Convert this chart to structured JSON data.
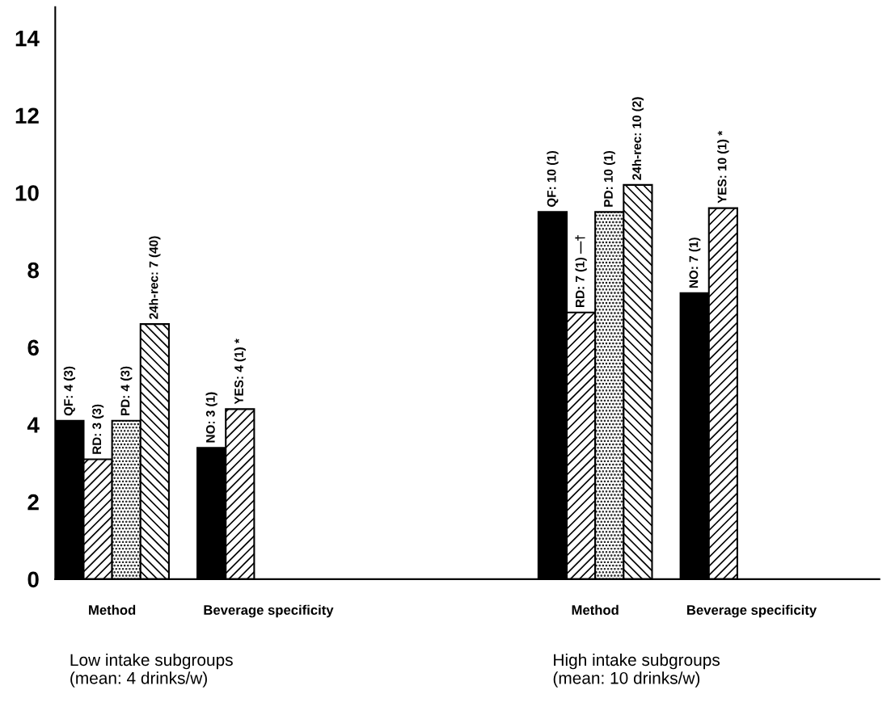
{
  "chart_data": {
    "type": "bar",
    "categories": [
      null,
      null,
      null,
      null,
      null,
      null,
      null,
      null,
      null,
      null,
      null,
      null,
      null,
      null,
      null,
      null,
      null,
      null,
      null,
      null,
      null,
      null,
      null,
      null,
      null,
      null,
      null,
      null,
      null
    ],
    "series": [
      {
        "color": "#000000",
        "values": [
          4.1,
          null,
          null,
          null,
          null,
          3.4,
          null,
          null,
          null,
          null,
          null,
          null,
          null,
          null,
          null,
          null,
          null,
          9.5,
          null,
          null,
          null,
          null,
          7.4,
          null,
          null,
          null,
          null,
          null,
          null
        ],
        "value_labels": [
          "QF: 4 (3)",
          null,
          null,
          null,
          null,
          "NO: 3 (1)",
          null,
          null,
          null,
          null,
          null,
          null,
          null,
          null,
          null,
          null,
          null,
          "QF: 10 (1)",
          null,
          null,
          null,
          null,
          "NO: 7 (1)",
          null,
          null,
          null,
          null,
          null,
          null
        ]
      },
      {
        "color": "#000000",
        "values": [
          null,
          3.1,
          null,
          null,
          null,
          null,
          4.4,
          null,
          null,
          null,
          null,
          null,
          null,
          null,
          null,
          null,
          null,
          null,
          6.9,
          null,
          null,
          null,
          null,
          9.6,
          null,
          null,
          null,
          null,
          null
        ],
        "value_labels": [
          null,
          "RD: 3 (3)",
          null,
          null,
          null,
          null,
          "YES: 4 (1) *",
          null,
          null,
          null,
          null,
          null,
          null,
          null,
          null,
          null,
          null,
          null,
          "RD: 7 (1) —†",
          null,
          null,
          null,
          null,
          "YES: 10 (1) *",
          null,
          null,
          null,
          null,
          null
        ]
      },
      {
        "color": "#000000",
        "values": [
          null,
          null,
          4.1,
          null,
          null,
          null,
          null,
          null,
          null,
          null,
          null,
          null,
          null,
          null,
          null,
          null,
          null,
          null,
          null,
          9.5,
          null,
          null,
          null,
          null,
          null,
          null,
          null,
          null,
          null
        ],
        "value_labels": [
          null,
          null,
          "PD: 4 (3)",
          null,
          null,
          null,
          null,
          null,
          null,
          null,
          null,
          null,
          null,
          null,
          null,
          null,
          null,
          null,
          null,
          "PD: 10 (1)",
          null,
          null,
          null,
          null,
          null,
          null,
          null,
          null,
          null
        ]
      },
      {
        "color": "#000000",
        "values": [
          null,
          null,
          null,
          6.6,
          null,
          null,
          null,
          null,
          null,
          null,
          null,
          null,
          null,
          null,
          null,
          null,
          null,
          null,
          null,
          null,
          10.2,
          null,
          null,
          null,
          null,
          null,
          null,
          null,
          null
        ],
        "value_labels": [
          null,
          null,
          null,
          "24h-rec: 7 (40)",
          null,
          null,
          null,
          null,
          null,
          null,
          null,
          null,
          null,
          null,
          null,
          null,
          null,
          null,
          null,
          null,
          "24h-rec: 10 (2)",
          null,
          null,
          null,
          null,
          null,
          null,
          null,
          null
        ]
      }
    ],
    "ylim": [
      0,
      14.8
    ],
    "yticks": [
      0,
      2,
      4,
      6,
      8,
      10,
      12,
      14
    ],
    "grid": false,
    "legend": false,
    "annotations": [
      "Method",
      "Beverage specificity",
      "Low intake subgroups\n(mean: 4 drinks/w)",
      "Method",
      "Beverage specificity",
      "High intake subgroups\n(mean: 10 drinks/w)"
    ]
  }
}
